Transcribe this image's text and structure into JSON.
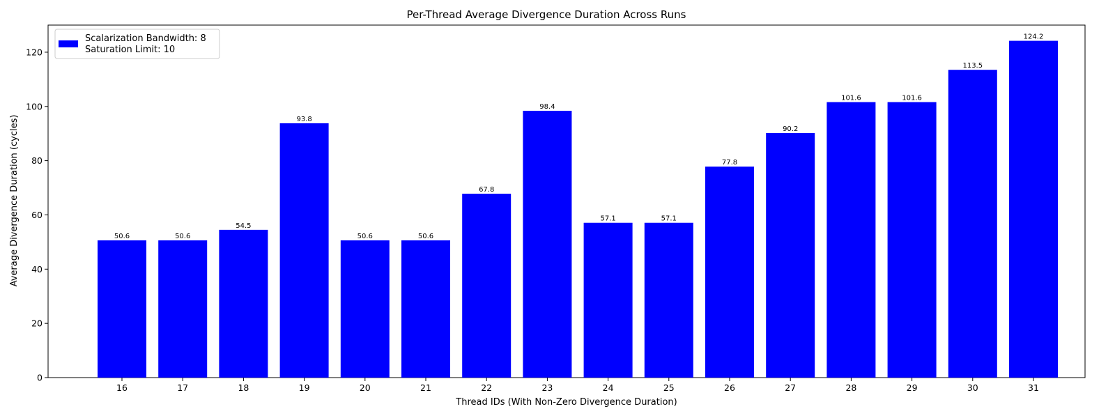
{
  "chart_data": {
    "type": "bar",
    "title": "Per-Thread Average Divergence Duration Across Runs",
    "xlabel": "Thread IDs (With Non-Zero Divergence Duration)",
    "ylabel": "Average Divergence Duration (cycles)",
    "categories": [
      "16",
      "17",
      "18",
      "19",
      "20",
      "21",
      "22",
      "23",
      "24",
      "25",
      "26",
      "27",
      "28",
      "29",
      "30",
      "31"
    ],
    "values": [
      50.6,
      50.6,
      54.5,
      93.8,
      50.6,
      50.6,
      67.8,
      98.4,
      57.1,
      57.1,
      77.8,
      90.2,
      101.6,
      101.6,
      113.5,
      124.2
    ],
    "data_labels": [
      "50.6",
      "50.6",
      "54.5",
      "93.8",
      "50.6",
      "50.6",
      "67.8",
      "98.4",
      "57.1",
      "57.1",
      "77.8",
      "90.2",
      "101.6",
      "101.6",
      "113.5",
      "124.2"
    ],
    "ylim": [
      0,
      130
    ],
    "yticks": [
      0,
      20,
      40,
      60,
      80,
      100,
      120
    ],
    "bar_color": "#0000ff",
    "grid": false,
    "legend": {
      "placement": "top-left",
      "lines": [
        "Scalarization Bandwidth: 8",
        "Saturation Limit: 10"
      ]
    }
  }
}
